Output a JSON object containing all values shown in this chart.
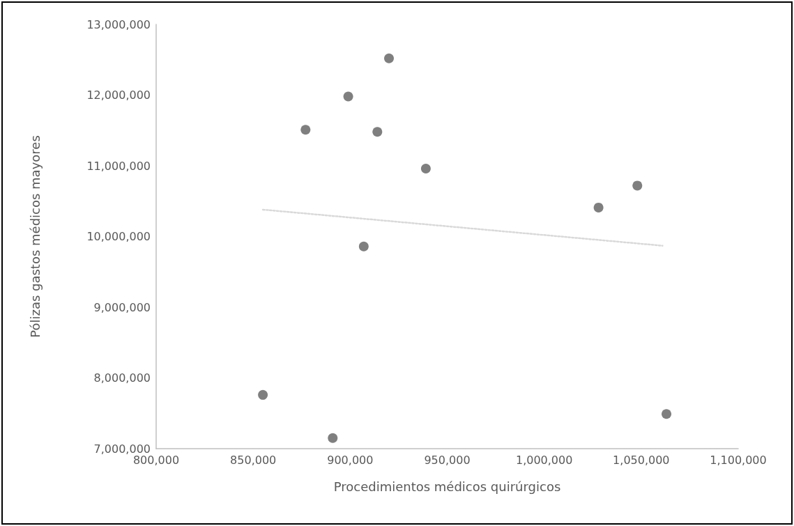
{
  "chart_data": {
    "type": "scatter",
    "xlabel": "Procedimientos médicos quirúrgicos",
    "ylabel": "Pólizas gastos médicos mayores",
    "xlim": [
      800000,
      1100000
    ],
    "xticks": [
      {
        "value": 800000,
        "label": "800,000"
      },
      {
        "value": 850000,
        "label": "850,000"
      },
      {
        "value": 900000,
        "label": "900,000"
      },
      {
        "value": 950000,
        "label": "950,000"
      },
      {
        "value": 1000000,
        "label": "1,000,000"
      },
      {
        "value": 1050000,
        "label": "1,050,000"
      },
      {
        "value": 1100000,
        "label": "1,100,000"
      }
    ],
    "ylim": [
      7000000,
      13000000
    ],
    "yticks": [
      {
        "value": 7000000,
        "label": "7,000,000"
      },
      {
        "value": 8000000,
        "label": "8,000,000"
      },
      {
        "value": 9000000,
        "label": "9,000,000"
      },
      {
        "value": 10000000,
        "label": "10,000,000"
      },
      {
        "value": 11000000,
        "label": "11,000,000"
      },
      {
        "value": 12000000,
        "label": "12,000,000"
      },
      {
        "value": 13000000,
        "label": "13,000,000"
      }
    ],
    "grid": false,
    "marker": "circle",
    "series": [
      {
        "color": "#7f7f7f",
        "x": [
          920000,
          899000,
          877000,
          914000,
          939000,
          907000,
          855000,
          891000,
          1048000,
          1028000,
          1063000
        ],
        "values": [
          12520000,
          11980000,
          11510000,
          11480000,
          10960000,
          9860000,
          7760000,
          7150000,
          10720000,
          10410000,
          7490000
        ]
      },
      {
        "type": "line",
        "color": "#d9d9d9",
        "line_style": "dotted",
        "marker": "none",
        "x": [
          855000,
          1061000
        ],
        "values": [
          10380000,
          9870000
        ]
      }
    ]
  }
}
